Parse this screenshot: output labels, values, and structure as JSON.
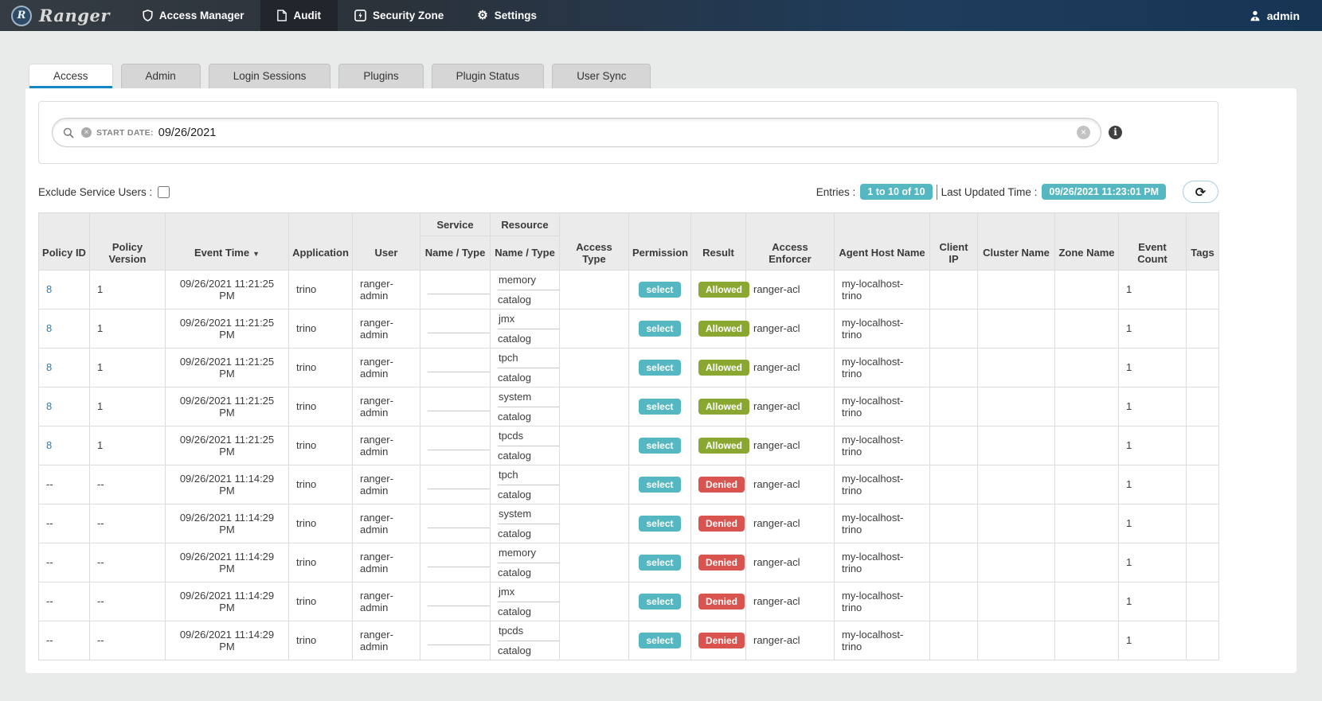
{
  "colors": {
    "accent_blue": "#1287c4",
    "teal": "#54b7c1",
    "green": "#8aa831",
    "red": "#d9534f",
    "link": "#2e7db3",
    "navbar_left": "#353c43",
    "navbar_right": "#163554"
  },
  "navbar": {
    "brand": "Ranger",
    "brand_initial": "R",
    "items": [
      {
        "id": "access-manager",
        "label": "Access Manager",
        "icon": "shield-icon",
        "active": false
      },
      {
        "id": "audit",
        "label": "Audit",
        "icon": "file-icon",
        "active": true
      },
      {
        "id": "security-zone",
        "label": "Security Zone",
        "icon": "bolt-square-icon",
        "active": false
      },
      {
        "id": "settings",
        "label": "Settings",
        "icon": "gear-icon",
        "active": false
      }
    ],
    "user": {
      "label": "admin",
      "icon": "user-icon"
    }
  },
  "tabs": [
    {
      "id": "access",
      "label": "Access",
      "active": true
    },
    {
      "id": "admin",
      "label": "Admin",
      "active": false
    },
    {
      "id": "login-sessions",
      "label": "Login Sessions",
      "active": false
    },
    {
      "id": "plugins",
      "label": "Plugins",
      "active": false
    },
    {
      "id": "plugin-status",
      "label": "Plugin Status",
      "active": false
    },
    {
      "id": "user-sync",
      "label": "User Sync",
      "active": false
    }
  ],
  "search": {
    "filters": [
      {
        "label": "START DATE:",
        "value": "09/26/2021"
      }
    ]
  },
  "toolbar": {
    "exclude_label": "Exclude Service Users :",
    "exclude_checked": false,
    "entries_label": "Entries :",
    "entries_value": "1 to 10 of 10",
    "last_updated_label": "Last Updated Time :",
    "last_updated_value": "09/26/2021 11:23:01 PM"
  },
  "icons": {
    "tag_remove": "×",
    "clear": "×",
    "info": "i",
    "refresh": "⟳",
    "gear": "⚙",
    "sort_desc": "▼"
  },
  "table": {
    "group_headers": {
      "service": "Service",
      "resource": "Resource"
    },
    "columns": [
      "Policy ID",
      "Policy Version",
      "Event Time",
      "Application",
      "User",
      "Name / Type",
      "Name / Type",
      "Access Type",
      "Permission",
      "Result",
      "Access Enforcer",
      "Agent Host Name",
      "Client IP",
      "Cluster Name",
      "Zone Name",
      "Event Count",
      "Tags"
    ],
    "sort": {
      "column": "Event Time",
      "direction": "desc"
    },
    "rows": [
      {
        "policy_id": "8",
        "policy_version": "1",
        "event_time": "09/26/2021 11:21:25 PM",
        "application": "trino",
        "user": "ranger-admin",
        "service_name": "",
        "service_type": "",
        "resource_name": "memory",
        "resource_type": "catalog",
        "access_type": "",
        "permission": "select",
        "result": "Allowed",
        "access_enforcer": "ranger-acl",
        "agent_host_name": "my-localhost-trino",
        "client_ip": "",
        "cluster_name": "",
        "zone_name": "",
        "event_count": "1",
        "tags": ""
      },
      {
        "policy_id": "8",
        "policy_version": "1",
        "event_time": "09/26/2021 11:21:25 PM",
        "application": "trino",
        "user": "ranger-admin",
        "service_name": "",
        "service_type": "",
        "resource_name": "jmx",
        "resource_type": "catalog",
        "access_type": "",
        "permission": "select",
        "result": "Allowed",
        "access_enforcer": "ranger-acl",
        "agent_host_name": "my-localhost-trino",
        "client_ip": "",
        "cluster_name": "",
        "zone_name": "",
        "event_count": "1",
        "tags": ""
      },
      {
        "policy_id": "8",
        "policy_version": "1",
        "event_time": "09/26/2021 11:21:25 PM",
        "application": "trino",
        "user": "ranger-admin",
        "service_name": "",
        "service_type": "",
        "resource_name": "tpch",
        "resource_type": "catalog",
        "access_type": "",
        "permission": "select",
        "result": "Allowed",
        "access_enforcer": "ranger-acl",
        "agent_host_name": "my-localhost-trino",
        "client_ip": "",
        "cluster_name": "",
        "zone_name": "",
        "event_count": "1",
        "tags": ""
      },
      {
        "policy_id": "8",
        "policy_version": "1",
        "event_time": "09/26/2021 11:21:25 PM",
        "application": "trino",
        "user": "ranger-admin",
        "service_name": "",
        "service_type": "",
        "resource_name": "system",
        "resource_type": "catalog",
        "access_type": "",
        "permission": "select",
        "result": "Allowed",
        "access_enforcer": "ranger-acl",
        "agent_host_name": "my-localhost-trino",
        "client_ip": "",
        "cluster_name": "",
        "zone_name": "",
        "event_count": "1",
        "tags": ""
      },
      {
        "policy_id": "8",
        "policy_version": "1",
        "event_time": "09/26/2021 11:21:25 PM",
        "application": "trino",
        "user": "ranger-admin",
        "service_name": "",
        "service_type": "",
        "resource_name": "tpcds",
        "resource_type": "catalog",
        "access_type": "",
        "permission": "select",
        "result": "Allowed",
        "access_enforcer": "ranger-acl",
        "agent_host_name": "my-localhost-trino",
        "client_ip": "",
        "cluster_name": "",
        "zone_name": "",
        "event_count": "1",
        "tags": ""
      },
      {
        "policy_id": "--",
        "policy_version": "--",
        "event_time": "09/26/2021 11:14:29 PM",
        "application": "trino",
        "user": "ranger-admin",
        "service_name": "",
        "service_type": "",
        "resource_name": "tpch",
        "resource_type": "catalog",
        "access_type": "",
        "permission": "select",
        "result": "Denied",
        "access_enforcer": "ranger-acl",
        "agent_host_name": "my-localhost-trino",
        "client_ip": "",
        "cluster_name": "",
        "zone_name": "",
        "event_count": "1",
        "tags": ""
      },
      {
        "policy_id": "--",
        "policy_version": "--",
        "event_time": "09/26/2021 11:14:29 PM",
        "application": "trino",
        "user": "ranger-admin",
        "service_name": "",
        "service_type": "",
        "resource_name": "system",
        "resource_type": "catalog",
        "access_type": "",
        "permission": "select",
        "result": "Denied",
        "access_enforcer": "ranger-acl",
        "agent_host_name": "my-localhost-trino",
        "client_ip": "",
        "cluster_name": "",
        "zone_name": "",
        "event_count": "1",
        "tags": ""
      },
      {
        "policy_id": "--",
        "policy_version": "--",
        "event_time": "09/26/2021 11:14:29 PM",
        "application": "trino",
        "user": "ranger-admin",
        "service_name": "",
        "service_type": "",
        "resource_name": "memory",
        "resource_type": "catalog",
        "access_type": "",
        "permission": "select",
        "result": "Denied",
        "access_enforcer": "ranger-acl",
        "agent_host_name": "my-localhost-trino",
        "client_ip": "",
        "cluster_name": "",
        "zone_name": "",
        "event_count": "1",
        "tags": ""
      },
      {
        "policy_id": "--",
        "policy_version": "--",
        "event_time": "09/26/2021 11:14:29 PM",
        "application": "trino",
        "user": "ranger-admin",
        "service_name": "",
        "service_type": "",
        "resource_name": "jmx",
        "resource_type": "catalog",
        "access_type": "",
        "permission": "select",
        "result": "Denied",
        "access_enforcer": "ranger-acl",
        "agent_host_name": "my-localhost-trino",
        "client_ip": "",
        "cluster_name": "",
        "zone_name": "",
        "event_count": "1",
        "tags": ""
      },
      {
        "policy_id": "--",
        "policy_version": "--",
        "event_time": "09/26/2021 11:14:29 PM",
        "application": "trino",
        "user": "ranger-admin",
        "service_name": "",
        "service_type": "",
        "resource_name": "tpcds",
        "resource_type": "catalog",
        "access_type": "",
        "permission": "select",
        "result": "Denied",
        "access_enforcer": "ranger-acl",
        "agent_host_name": "my-localhost-trino",
        "client_ip": "",
        "cluster_name": "",
        "zone_name": "",
        "event_count": "1",
        "tags": ""
      }
    ]
  }
}
